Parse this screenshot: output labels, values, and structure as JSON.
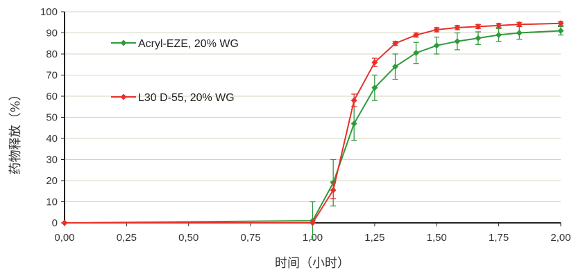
{
  "chart_data": {
    "type": "line",
    "title": "",
    "xlabel": "时间（小时）",
    "ylabel": "药物释放（%）",
    "xlim": [
      0,
      2
    ],
    "ylim": [
      0,
      100
    ],
    "x_ticks": [
      "0,00",
      "0,25",
      "0,50",
      "0,75",
      "1,00",
      "1,25",
      "1,50",
      "1,75",
      "2,00"
    ],
    "x_tick_values": [
      0,
      0.25,
      0.5,
      0.75,
      1.0,
      1.25,
      1.5,
      1.75,
      2.0
    ],
    "y_ticks": [
      "0",
      "10",
      "20",
      "30",
      "40",
      "50",
      "60",
      "70",
      "80",
      "90",
      "100"
    ],
    "y_tick_values": [
      0,
      10,
      20,
      30,
      40,
      50,
      60,
      70,
      80,
      90,
      100
    ],
    "grid": "horizontal",
    "legend_position": "top-left",
    "series": [
      {
        "name": "Acryl-EZE, 20% WG",
        "color": "#2e9a3c",
        "marker": "diamond",
        "x": [
          0,
          1.0,
          1.083,
          1.167,
          1.25,
          1.333,
          1.417,
          1.5,
          1.583,
          1.667,
          1.75,
          1.833,
          2.0
        ],
        "values": [
          0,
          1,
          19,
          47,
          64,
          74,
          80.5,
          84,
          86,
          87.5,
          89,
          90,
          91
        ],
        "error": [
          0,
          9,
          11,
          8,
          6,
          6,
          5,
          4,
          4,
          3,
          3,
          3,
          2
        ]
      },
      {
        "name": "L30 D-55, 20% WG",
        "color": "#e8302a",
        "marker": "diamond",
        "x": [
          0,
          1.0,
          1.083,
          1.167,
          1.25,
          1.333,
          1.417,
          1.5,
          1.583,
          1.667,
          1.75,
          1.833,
          2.0
        ],
        "values": [
          0,
          0,
          15.5,
          58,
          76,
          85,
          89,
          91.5,
          92.5,
          93,
          93.5,
          94,
          94.5
        ],
        "error": [
          0,
          0,
          4,
          3,
          2,
          1,
          1,
          1,
          1,
          1,
          1,
          1,
          1
        ]
      }
    ]
  }
}
